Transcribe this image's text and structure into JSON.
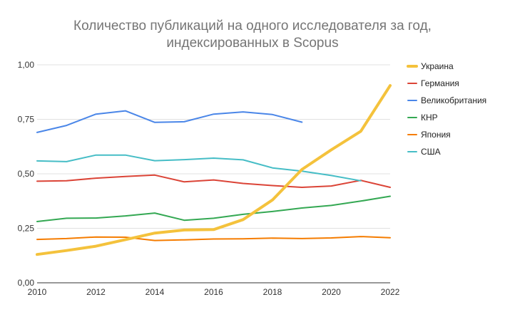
{
  "chart_data": {
    "type": "line",
    "title_lines": [
      "Количество публикаций на одного исследователя за год,",
      "индексированных в Scopus"
    ],
    "xlabel": "",
    "ylabel": "",
    "x": [
      2010,
      2011,
      2012,
      2013,
      2014,
      2015,
      2016,
      2017,
      2018,
      2019,
      2020,
      2021,
      2022
    ],
    "x_tick_labels": [
      "2010",
      "2012",
      "2014",
      "2016",
      "2018",
      "2020",
      "2022"
    ],
    "x_tick_values": [
      2010,
      2012,
      2014,
      2016,
      2018,
      2020,
      2022
    ],
    "xlim": [
      2010,
      2022
    ],
    "y_tick_labels": [
      "0,00",
      "0,25",
      "0,50",
      "0,75",
      "1,00"
    ],
    "y_tick_values": [
      0,
      0.25,
      0.5,
      0.75,
      1.0
    ],
    "ylim": [
      0,
      1.0
    ],
    "grid": true,
    "legend_position": "right",
    "series": [
      {
        "name": "Украина",
        "color": "#f4c23c",
        "emphasis": true,
        "values": [
          0.13,
          0.148,
          0.168,
          0.198,
          0.228,
          0.242,
          0.244,
          0.29,
          0.38,
          0.52,
          0.61,
          0.695,
          0.905
        ]
      },
      {
        "name": "Германия",
        "color": "#db4437",
        "values": [
          0.466,
          0.468,
          0.48,
          0.488,
          0.494,
          0.463,
          0.472,
          0.456,
          0.446,
          0.438,
          0.444,
          0.47,
          0.438
        ]
      },
      {
        "name": "Великобритания",
        "color": "#4a86e8",
        "values": [
          0.69,
          0.722,
          0.774,
          0.789,
          0.736,
          0.739,
          0.774,
          0.784,
          0.772,
          0.737,
          null,
          null,
          null
        ]
      },
      {
        "name": "КНР",
        "color": "#34a853",
        "values": [
          0.281,
          0.296,
          0.297,
          0.307,
          0.32,
          0.287,
          0.296,
          0.314,
          0.327,
          0.343,
          0.355,
          0.375,
          0.397
        ]
      },
      {
        "name": "Япония",
        "color": "#f57c00",
        "values": [
          0.199,
          0.203,
          0.21,
          0.209,
          0.194,
          0.197,
          0.201,
          0.202,
          0.205,
          0.203,
          0.206,
          0.212,
          0.207
        ]
      },
      {
        "name": "США",
        "color": "#46bdc6",
        "values": [
          0.559,
          0.556,
          0.586,
          0.586,
          0.56,
          0.565,
          0.572,
          0.564,
          0.527,
          0.512,
          0.492,
          0.468,
          null
        ]
      }
    ]
  }
}
